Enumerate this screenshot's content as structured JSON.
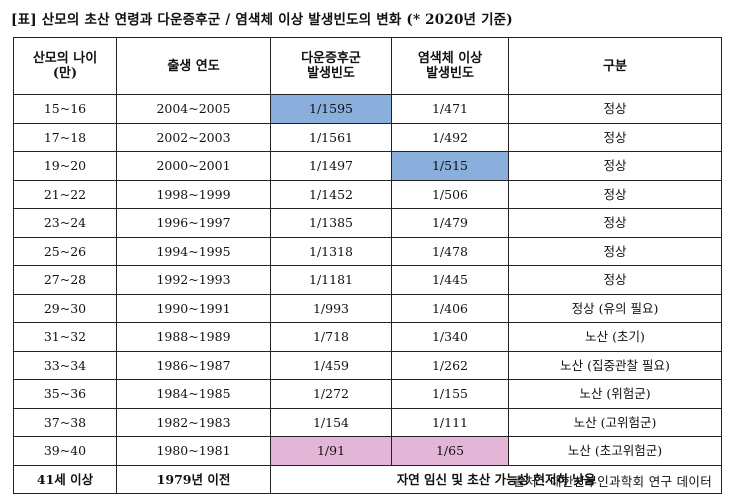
{
  "title": "[표] 산모의 초산 연령과 다운증후군 / 염색체 이상 발생빈도의 변화 (* 2020년 기준)",
  "headers": [
    {
      "line1": "산모의 나이",
      "line2": "(만)"
    },
    {
      "line1": "출생 연도",
      "line2": ""
    },
    {
      "line1": "다운증후군",
      "line2": "발생빈도"
    },
    {
      "line1": "염색체 이상",
      "line2": "발생빈도"
    },
    {
      "line1": "구분",
      "line2": ""
    }
  ],
  "rows": [
    {
      "age": "15~16",
      "year": "2004~2005",
      "down": "1/1595",
      "chrom": "1/471",
      "category": "정상",
      "down_highlight": "blue",
      "chrom_highlight": ""
    },
    {
      "age": "17~18",
      "year": "2002~2003",
      "down": "1/1561",
      "chrom": "1/492",
      "category": "정상",
      "down_highlight": "",
      "chrom_highlight": ""
    },
    {
      "age": "19~20",
      "year": "2000~2001",
      "down": "1/1497",
      "chrom": "1/515",
      "category": "정상",
      "down_highlight": "",
      "chrom_highlight": "blue"
    },
    {
      "age": "21~22",
      "year": "1998~1999",
      "down": "1/1452",
      "chrom": "1/506",
      "category": "정상",
      "down_highlight": "",
      "chrom_highlight": ""
    },
    {
      "age": "23~24",
      "year": "1996~1997",
      "down": "1/1385",
      "chrom": "1/479",
      "category": "정상",
      "down_highlight": "",
      "chrom_highlight": ""
    },
    {
      "age": "25~26",
      "year": "1994~1995",
      "down": "1/1318",
      "chrom": "1/478",
      "category": "정상",
      "down_highlight": "",
      "chrom_highlight": ""
    },
    {
      "age": "27~28",
      "year": "1992~1993",
      "down": "1/1181",
      "chrom": "1/445",
      "category": "정상",
      "down_highlight": "",
      "chrom_highlight": ""
    },
    {
      "age": "29~30",
      "year": "1990~1991",
      "down": "1/993",
      "chrom": "1/406",
      "category": "정상 (유의 필요)",
      "down_highlight": "",
      "chrom_highlight": ""
    },
    {
      "age": "31~32",
      "year": "1988~1989",
      "down": "1/718",
      "chrom": "1/340",
      "category": "노산 (초기)",
      "down_highlight": "",
      "chrom_highlight": ""
    },
    {
      "age": "33~34",
      "year": "1986~1987",
      "down": "1/459",
      "chrom": "1/262",
      "category": "노산 (집중관찰 필요)",
      "down_highlight": "",
      "chrom_highlight": ""
    },
    {
      "age": "35~36",
      "year": "1984~1985",
      "down": "1/272",
      "chrom": "1/155",
      "category": "노산 (위험군)",
      "down_highlight": "",
      "chrom_highlight": ""
    },
    {
      "age": "37~38",
      "year": "1982~1983",
      "down": "1/154",
      "chrom": "1/111",
      "category": "노산 (고위험군)",
      "down_highlight": "",
      "chrom_highlight": ""
    },
    {
      "age": "39~40",
      "year": "1980~1981",
      "down": "1/91",
      "chrom": "1/65",
      "category": "노산 (초고위험군)",
      "down_highlight": "pink",
      "chrom_highlight": "pink"
    }
  ],
  "last_row": {
    "age": "41세 이상",
    "year": "1979년 이전",
    "note": "자연 임신 및 초산 가능성 현저히 낮음"
  },
  "colors": {
    "highlight_blue": "#8aafdc",
    "highlight_pink": "#e3b6d8"
  },
  "source": "출처 : 대한산부인과학회 연구 데이터"
}
